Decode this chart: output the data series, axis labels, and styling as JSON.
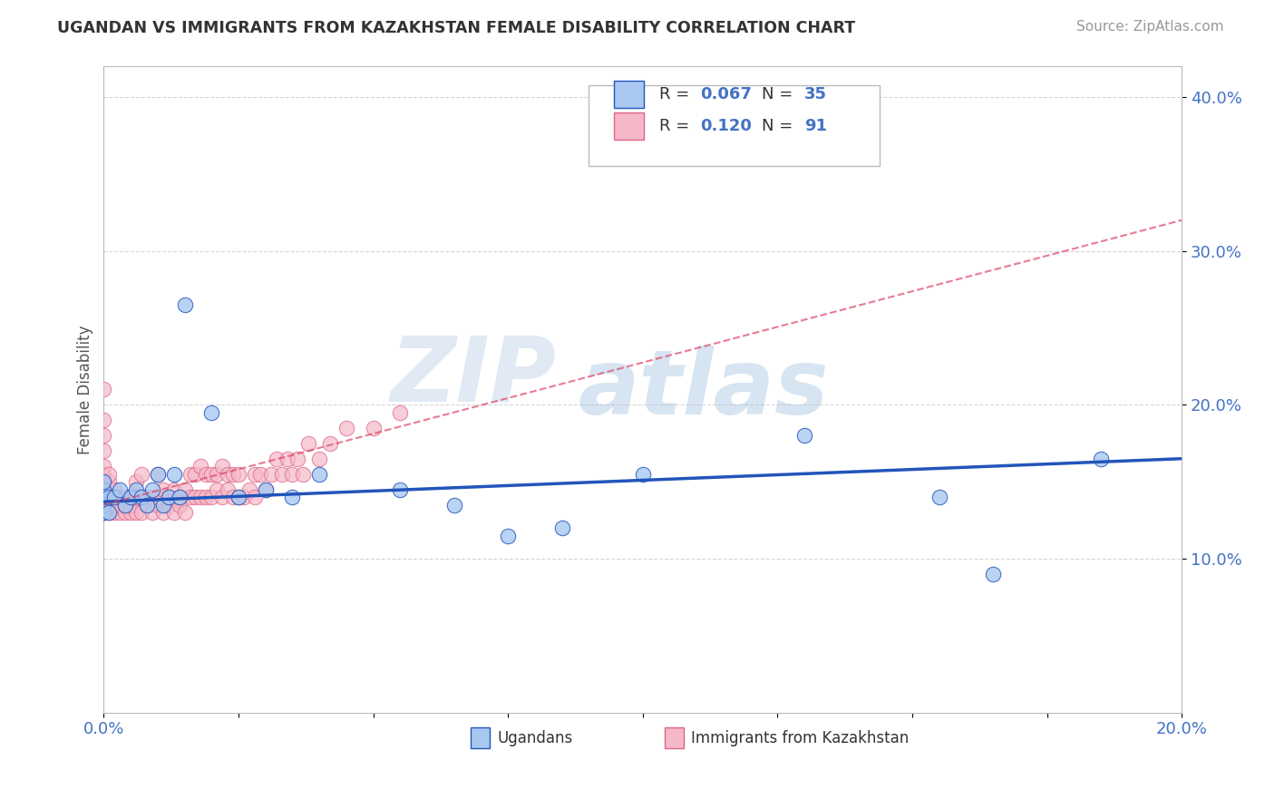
{
  "title": "UGANDAN VS IMMIGRANTS FROM KAZAKHSTAN FEMALE DISABILITY CORRELATION CHART",
  "source": "Source: ZipAtlas.com",
  "ylabel": "Female Disability",
  "xlim": [
    0.0,
    0.2
  ],
  "ylim": [
    0.0,
    0.42
  ],
  "xticks": [
    0.0,
    0.025,
    0.05,
    0.075,
    0.1,
    0.125,
    0.15,
    0.175,
    0.2
  ],
  "yticks": [
    0.1,
    0.2,
    0.3,
    0.4
  ],
  "xticklabels_show": [
    "0.0%",
    "20.0%"
  ],
  "yticklabels": [
    "10.0%",
    "20.0%",
    "30.0%",
    "40.0%"
  ],
  "ugandan_color": "#a8c8f0",
  "kazakh_color": "#f5b8c8",
  "ugandan_line_color": "#2255bb",
  "kazakh_line_color": "#dd4466",
  "ugandan_label": "Ugandans",
  "kazakh_label": "Immigrants from Kazakhstan",
  "legend_r1": "0.067",
  "legend_n1": "35",
  "legend_r2": "0.120",
  "legend_n2": "91",
  "watermark_zip": "ZIP",
  "watermark_atlas": "atlas",
  "background_color": "#ffffff",
  "grid_color": "#cccccc",
  "ugandan_x": [
    0.0,
    0.0,
    0.0,
    0.0,
    0.0,
    0.001,
    0.001,
    0.002,
    0.003,
    0.004,
    0.005,
    0.006,
    0.007,
    0.008,
    0.009,
    0.01,
    0.011,
    0.012,
    0.013,
    0.014,
    0.015,
    0.02,
    0.025,
    0.03,
    0.035,
    0.04,
    0.055,
    0.065,
    0.075,
    0.085,
    0.1,
    0.13,
    0.155,
    0.165,
    0.185
  ],
  "ugandan_y": [
    0.13,
    0.135,
    0.14,
    0.145,
    0.15,
    0.13,
    0.14,
    0.14,
    0.145,
    0.135,
    0.14,
    0.145,
    0.14,
    0.135,
    0.145,
    0.155,
    0.135,
    0.14,
    0.155,
    0.14,
    0.265,
    0.195,
    0.14,
    0.145,
    0.14,
    0.155,
    0.145,
    0.135,
    0.115,
    0.12,
    0.155,
    0.18,
    0.14,
    0.09,
    0.165
  ],
  "kazakh_x": [
    0.0,
    0.0,
    0.0,
    0.0,
    0.0,
    0.0,
    0.0,
    0.0,
    0.0,
    0.0,
    0.0,
    0.001,
    0.001,
    0.001,
    0.001,
    0.001,
    0.002,
    0.002,
    0.002,
    0.002,
    0.003,
    0.003,
    0.003,
    0.004,
    0.004,
    0.004,
    0.005,
    0.005,
    0.005,
    0.006,
    0.006,
    0.006,
    0.007,
    0.007,
    0.007,
    0.008,
    0.008,
    0.009,
    0.009,
    0.01,
    0.01,
    0.01,
    0.011,
    0.011,
    0.012,
    0.012,
    0.013,
    0.013,
    0.014,
    0.014,
    0.015,
    0.015,
    0.016,
    0.016,
    0.017,
    0.017,
    0.018,
    0.018,
    0.019,
    0.019,
    0.02,
    0.02,
    0.021,
    0.021,
    0.022,
    0.022,
    0.023,
    0.023,
    0.024,
    0.024,
    0.025,
    0.025,
    0.026,
    0.027,
    0.028,
    0.028,
    0.029,
    0.03,
    0.031,
    0.032,
    0.033,
    0.034,
    0.035,
    0.036,
    0.037,
    0.038,
    0.04,
    0.042,
    0.045,
    0.05,
    0.055
  ],
  "kazakh_y": [
    0.13,
    0.135,
    0.14,
    0.145,
    0.15,
    0.155,
    0.16,
    0.17,
    0.18,
    0.19,
    0.21,
    0.13,
    0.135,
    0.14,
    0.15,
    0.155,
    0.13,
    0.135,
    0.14,
    0.145,
    0.13,
    0.135,
    0.14,
    0.13,
    0.135,
    0.14,
    0.13,
    0.135,
    0.14,
    0.13,
    0.14,
    0.15,
    0.13,
    0.14,
    0.155,
    0.135,
    0.14,
    0.13,
    0.14,
    0.135,
    0.14,
    0.155,
    0.13,
    0.145,
    0.135,
    0.14,
    0.13,
    0.145,
    0.135,
    0.14,
    0.13,
    0.145,
    0.14,
    0.155,
    0.14,
    0.155,
    0.14,
    0.16,
    0.14,
    0.155,
    0.14,
    0.155,
    0.145,
    0.155,
    0.14,
    0.16,
    0.145,
    0.155,
    0.14,
    0.155,
    0.14,
    0.155,
    0.14,
    0.145,
    0.14,
    0.155,
    0.155,
    0.145,
    0.155,
    0.165,
    0.155,
    0.165,
    0.155,
    0.165,
    0.155,
    0.175,
    0.165,
    0.175,
    0.185,
    0.185,
    0.195
  ]
}
